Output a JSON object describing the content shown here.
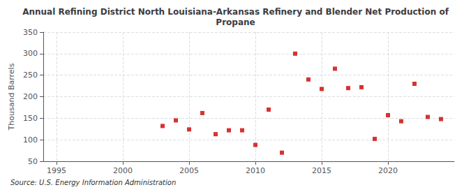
{
  "chart_data": {
    "type": "scatter",
    "title": "Annual Refining District North Louisiana-Arkansas Refinery and Blender Net Production of\nPropane",
    "ylabel": "Thousand Barrels",
    "source": "Source: U.S. Energy Information Administration",
    "x": [
      2003,
      2004,
      2005,
      2006,
      2007,
      2008,
      2009,
      2010,
      2011,
      2012,
      2013,
      2014,
      2015,
      2016,
      2017,
      2018,
      2019,
      2020,
      2021,
      2022,
      2023,
      2024
    ],
    "values": [
      132,
      145,
      124,
      162,
      113,
      122,
      122,
      88,
      170,
      70,
      300,
      240,
      218,
      265,
      220,
      222,
      102,
      157,
      143,
      230,
      153,
      148
    ],
    "color": "#cc0000",
    "marker": "square",
    "xlim": [
      1994,
      2025
    ],
    "xticks": [
      1995,
      2000,
      2005,
      2010,
      2015,
      2020
    ],
    "ylim": [
      50,
      350
    ],
    "yticks": [
      50,
      100,
      150,
      200,
      250,
      300,
      350
    ],
    "grid": true
  }
}
